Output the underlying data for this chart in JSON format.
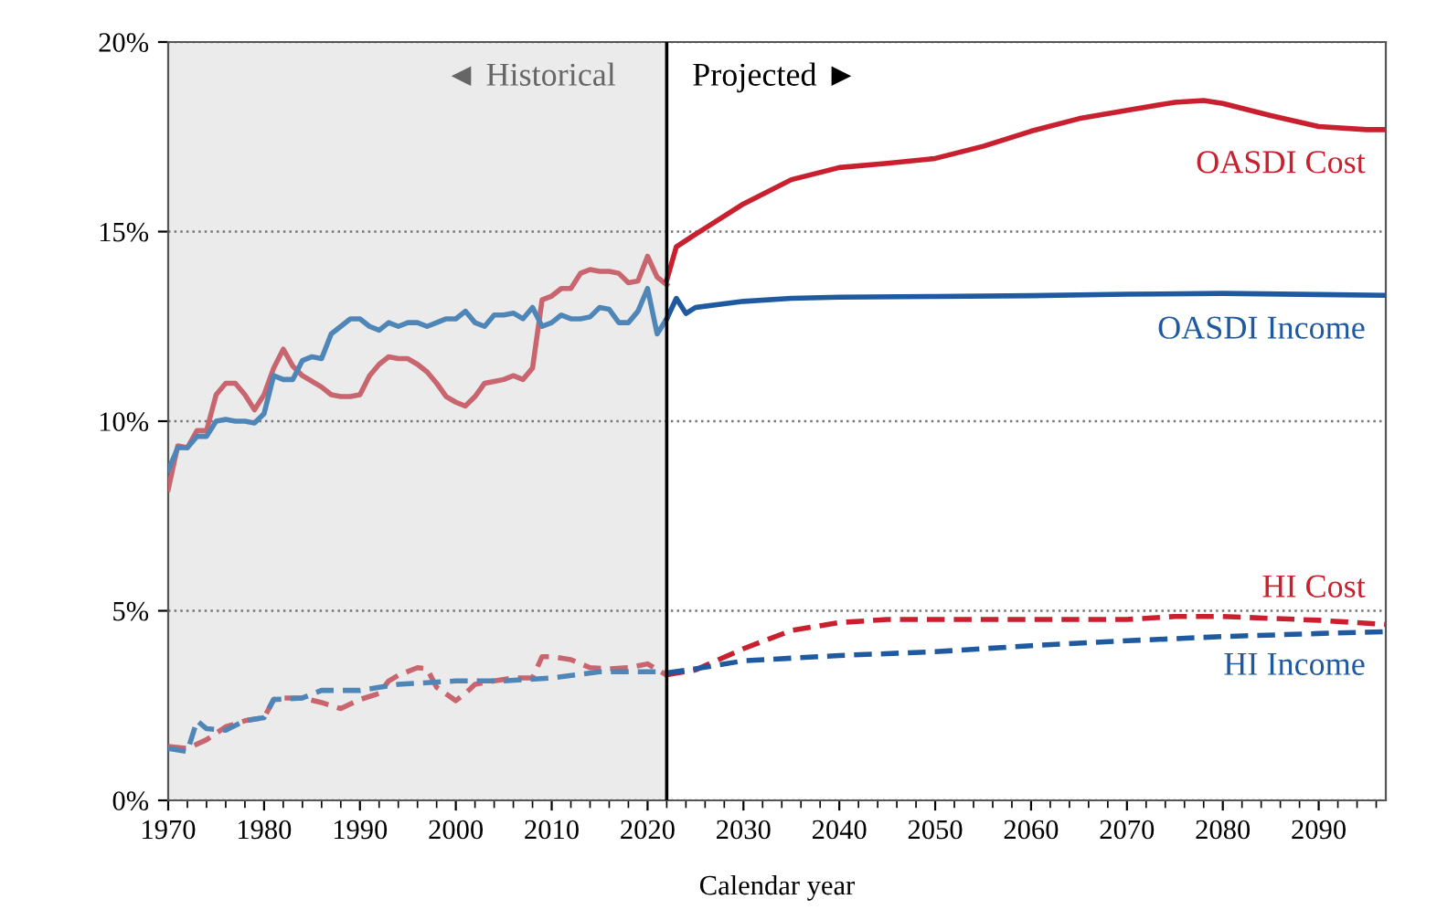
{
  "chart_data": {
    "type": "line",
    "xlabel": "Calendar year",
    "xlim": [
      1970,
      2097
    ],
    "xticks": [
      1970,
      1980,
      1990,
      2000,
      2010,
      2020,
      2030,
      2040,
      2050,
      2060,
      2070,
      2080,
      2090
    ],
    "ylim": [
      0,
      20
    ],
    "yticks": [
      {
        "value": 0,
        "label": "0%"
      },
      {
        "value": 5,
        "label": "5%"
      },
      {
        "value": 10,
        "label": "10%"
      },
      {
        "value": 15,
        "label": "15%"
      },
      {
        "value": 20,
        "label": "20%"
      }
    ],
    "grid": "y",
    "legend": false,
    "marker": "none",
    "bands": [
      {
        "axis": "x",
        "from": 1970,
        "to": 2022,
        "label": null,
        "color": "#ebebeb"
      }
    ],
    "ref_lines": [
      {
        "axis": "x",
        "value": 2022,
        "label": null,
        "color": "#000000"
      }
    ],
    "annotations": [
      "◄ Historical",
      "Projected ►"
    ],
    "series": [
      {
        "color": "#c9656e",
        "line_style": "solid",
        "x": [
          1970,
          1971,
          1972,
          1973,
          1974,
          1975,
          1976,
          1977,
          1978,
          1979,
          1980,
          1981,
          1982,
          1983,
          1984,
          1985,
          1986,
          1987,
          1988,
          1989,
          1990,
          1991,
          1992,
          1993,
          1994,
          1995,
          1996,
          1997,
          1998,
          1999,
          2000,
          2001,
          2002,
          2003,
          2004,
          2005,
          2006,
          2007,
          2008,
          2009,
          2010,
          2011,
          2012,
          2013,
          2014,
          2015,
          2016,
          2017,
          2018,
          2019,
          2020,
          2021,
          2022
        ],
        "values": [
          8.2,
          9.35,
          9.3,
          9.75,
          9.75,
          10.7,
          11.0,
          11.0,
          10.7,
          10.3,
          10.7,
          11.4,
          11.9,
          11.45,
          11.2,
          11.05,
          10.9,
          10.7,
          10.65,
          10.65,
          10.7,
          11.2,
          11.5,
          11.7,
          11.65,
          11.65,
          11.5,
          11.3,
          11.0,
          10.65,
          10.5,
          10.4,
          10.65,
          11.0,
          11.05,
          11.1,
          11.2,
          11.1,
          11.4,
          13.2,
          13.3,
          13.5,
          13.5,
          13.9,
          14.0,
          13.95,
          13.95,
          13.9,
          13.65,
          13.7,
          14.35,
          13.8,
          13.6
        ]
      },
      {
        "color": "#4f86b8",
        "line_style": "solid",
        "x": [
          1970,
          1971,
          1972,
          1973,
          1974,
          1975,
          1976,
          1977,
          1978,
          1979,
          1980,
          1981,
          1982,
          1983,
          1984,
          1985,
          1986,
          1987,
          1988,
          1989,
          1990,
          1991,
          1992,
          1993,
          1994,
          1995,
          1996,
          1997,
          1998,
          1999,
          2000,
          2001,
          2002,
          2003,
          2004,
          2005,
          2006,
          2007,
          2008,
          2009,
          2010,
          2011,
          2012,
          2013,
          2014,
          2015,
          2016,
          2017,
          2018,
          2019,
          2020,
          2021,
          2022
        ],
        "values": [
          8.7,
          9.3,
          9.3,
          9.6,
          9.6,
          10.0,
          10.05,
          10.0,
          10.0,
          9.95,
          10.2,
          11.2,
          11.1,
          11.1,
          11.6,
          11.7,
          11.65,
          12.3,
          12.5,
          12.7,
          12.7,
          12.5,
          12.4,
          12.6,
          12.5,
          12.6,
          12.6,
          12.5,
          12.6,
          12.7,
          12.7,
          12.9,
          12.6,
          12.5,
          12.8,
          12.8,
          12.85,
          12.7,
          13.0,
          12.5,
          12.6,
          12.8,
          12.7,
          12.7,
          12.75,
          13.0,
          12.95,
          12.6,
          12.6,
          12.9,
          13.5,
          12.3,
          12.7
        ]
      },
      {
        "color": "#c9656e",
        "line_style": "dashed",
        "x": [
          1970,
          1972,
          1974,
          1976,
          1978,
          1980,
          1981,
          1982,
          1984,
          1986,
          1988,
          1990,
          1992,
          1993,
          1994,
          1996,
          1997,
          1998,
          2000,
          2001,
          2002,
          2004,
          2006,
          2008,
          2009,
          2010,
          2012,
          2014,
          2016,
          2018,
          2020,
          2022
        ],
        "values": [
          1.42,
          1.37,
          1.6,
          1.94,
          2.1,
          2.18,
          2.66,
          2.7,
          2.7,
          2.58,
          2.42,
          2.66,
          2.82,
          3.15,
          3.3,
          3.5,
          3.47,
          2.98,
          2.63,
          2.82,
          3.06,
          3.15,
          3.23,
          3.23,
          3.79,
          3.79,
          3.71,
          3.5,
          3.47,
          3.5,
          3.6,
          3.3
        ]
      },
      {
        "color": "#4f86b8",
        "line_style": "dashed",
        "x": [
          1970,
          1972,
          1973,
          1974,
          1976,
          1978,
          1980,
          1981,
          1984,
          1986,
          1990,
          1992,
          1994,
          2000,
          2005,
          2010,
          2015,
          2020,
          2022
        ],
        "values": [
          1.37,
          1.29,
          2.1,
          1.89,
          1.85,
          2.1,
          2.18,
          2.66,
          2.7,
          2.9,
          2.9,
          2.98,
          3.06,
          3.15,
          3.15,
          3.23,
          3.39,
          3.39,
          3.39
        ]
      },
      {
        "name": "OASDI Cost",
        "color": "#c8202e",
        "line_style": "solid",
        "x": [
          2022,
          2023,
          2025,
          2030,
          2035,
          2040,
          2045,
          2050,
          2055,
          2060,
          2065,
          2070,
          2075,
          2078,
          2080,
          2085,
          2090,
          2095,
          2097
        ],
        "values": [
          13.72,
          14.6,
          14.93,
          15.73,
          16.37,
          16.69,
          16.8,
          16.93,
          17.25,
          17.65,
          17.98,
          18.2,
          18.41,
          18.46,
          18.38,
          18.06,
          17.77,
          17.69,
          17.69
        ]
      },
      {
        "name": "OASDI Income",
        "color": "#1f5aa0",
        "line_style": "solid",
        "x": [
          2022,
          2023,
          2024,
          2025,
          2030,
          2035,
          2040,
          2050,
          2060,
          2070,
          2080,
          2090,
          2097
        ],
        "values": [
          12.7,
          13.24,
          12.84,
          13.0,
          13.16,
          13.24,
          13.27,
          13.29,
          13.31,
          13.35,
          13.37,
          13.34,
          13.32
        ]
      },
      {
        "name": "HI Cost",
        "color": "#c8202e",
        "line_style": "dashed",
        "x": [
          2022,
          2025,
          2030,
          2035,
          2040,
          2045,
          2050,
          2060,
          2070,
          2075,
          2080,
          2085,
          2090,
          2097
        ],
        "values": [
          3.31,
          3.44,
          4.0,
          4.48,
          4.69,
          4.77,
          4.77,
          4.77,
          4.77,
          4.85,
          4.85,
          4.8,
          4.75,
          4.64
        ]
      },
      {
        "name": "HI Income",
        "color": "#1f5aa0",
        "line_style": "dashed",
        "x": [
          2022,
          2025,
          2030,
          2040,
          2050,
          2060,
          2070,
          2080,
          2090,
          2097
        ],
        "values": [
          3.36,
          3.47,
          3.68,
          3.82,
          3.92,
          4.08,
          4.21,
          4.32,
          4.4,
          4.45
        ]
      }
    ]
  }
}
